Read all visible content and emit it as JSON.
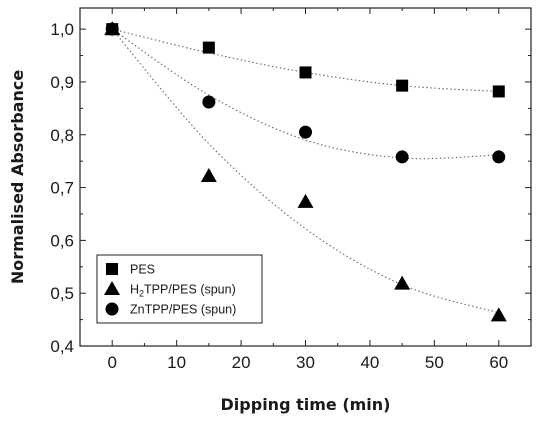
{
  "chart_data": {
    "type": "scatter",
    "xlabel": "Dipping time (min)",
    "ylabel": "Normalised Absorbance",
    "xlim": [
      -5,
      65
    ],
    "ylim": [
      0.4,
      1.04
    ],
    "xticks": [
      "0",
      "10",
      "20",
      "30",
      "40",
      "50",
      "60"
    ],
    "yticks": [
      "0,4",
      "0,5",
      "0,6",
      "0,7",
      "0,8",
      "0,9",
      "1,0"
    ],
    "legend_position": "bottom-left",
    "series": [
      {
        "name": "PES",
        "marker": "square",
        "x": [
          0,
          15,
          30,
          45,
          60
        ],
        "y": [
          1.0,
          0.965,
          0.918,
          0.893,
          0.882
        ],
        "fit": [
          1.0,
          0.955,
          0.918,
          0.893,
          0.882
        ]
      },
      {
        "name": "H2TPP/PES (spun)",
        "marker": "triangle",
        "x": [
          0,
          15,
          30,
          45,
          60
        ],
        "y": [
          1.0,
          0.722,
          0.673,
          0.518,
          0.458
        ],
        "fit": [
          1.0,
          0.783,
          0.622,
          0.516,
          0.463
        ]
      },
      {
        "name": "ZnTPP/PES (spun)",
        "marker": "circle",
        "x": [
          0,
          15,
          30,
          45,
          60
        ],
        "y": [
          1.0,
          0.862,
          0.805,
          0.758,
          0.758
        ],
        "fit": [
          1.0,
          0.875,
          0.79,
          0.756,
          0.762
        ]
      }
    ],
    "legend": {
      "items": [
        {
          "prefix": "PES",
          "sub": "",
          "suffix": ""
        },
        {
          "prefix": "H",
          "sub": "2",
          "suffix": "TPP/PES (spun)"
        },
        {
          "prefix": "ZnTPP/PES (spun)",
          "sub": "",
          "suffix": ""
        }
      ]
    },
    "colors": {
      "marker": "#000000",
      "fit_line": "#666666",
      "axis": "#222222"
    }
  }
}
